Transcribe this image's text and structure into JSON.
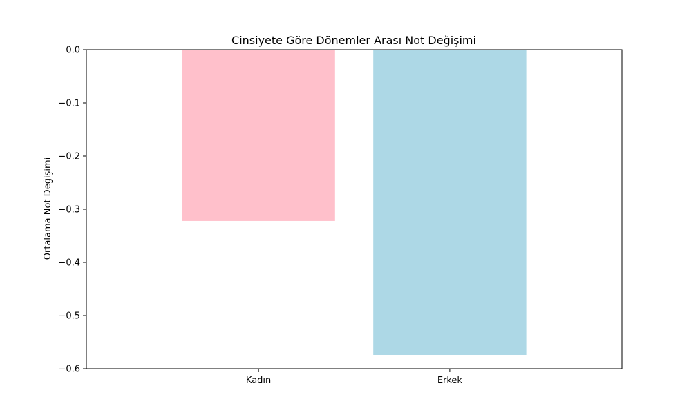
{
  "chart_data": {
    "type": "bar",
    "title": "Cinsiyete Göre Dönemler Arası Not Değişimi",
    "xlabel": "",
    "ylabel": "Ortalama Not Değişimi",
    "categories": [
      "Kadın",
      "Erkek"
    ],
    "values": [
      -0.322,
      -0.574
    ],
    "colors": [
      "#ffc0cb",
      "#add8e6"
    ],
    "ylim": [
      -0.6,
      0.0
    ],
    "yticks": [
      0.0,
      -0.1,
      -0.2,
      -0.3,
      -0.4,
      -0.5,
      -0.6
    ],
    "ytick_labels": [
      "0.0",
      "−0.1",
      "−0.2",
      "−0.3",
      "−0.4",
      "−0.5",
      "−0.6"
    ],
    "grid": false,
    "legend": "none"
  }
}
